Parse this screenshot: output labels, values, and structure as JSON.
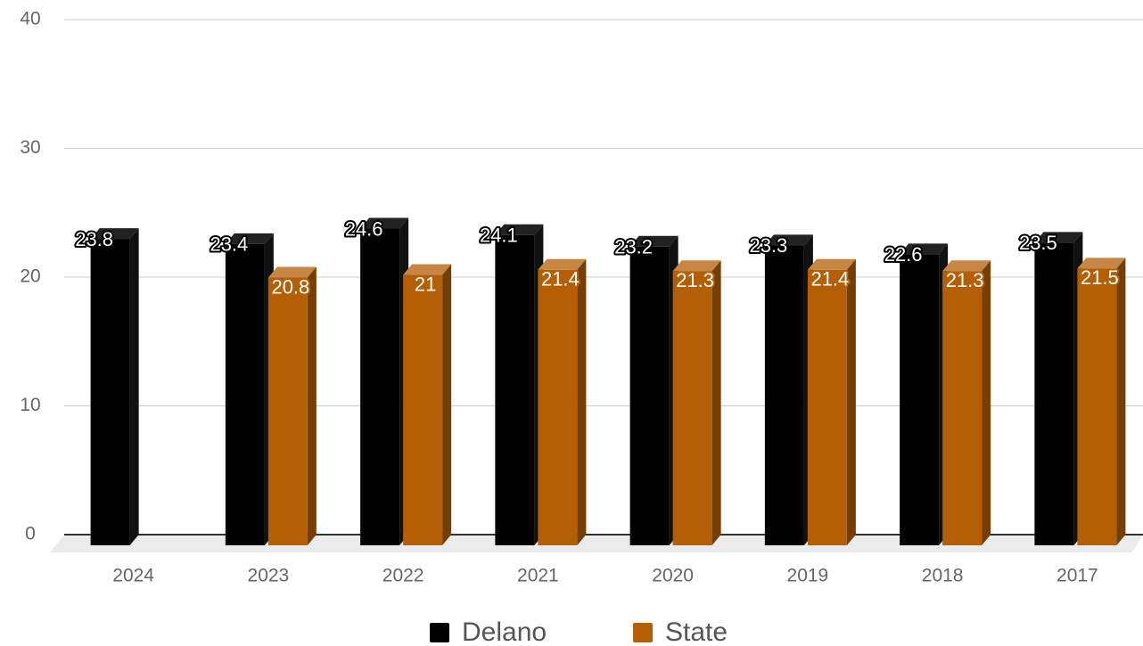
{
  "chart_data": {
    "type": "bar",
    "categories": [
      "2024",
      "2023",
      "2022",
      "2021",
      "2020",
      "2019",
      "2018",
      "2017"
    ],
    "series": [
      {
        "name": "Delano",
        "color": "#000000",
        "values": [
          23.8,
          23.4,
          24.6,
          24.1,
          23.2,
          23.3,
          22.6,
          23.5
        ]
      },
      {
        "name": "State",
        "color": "#b45f06",
        "values": [
          null,
          20.8,
          21,
          21.4,
          21.3,
          21.4,
          21.3,
          21.5
        ]
      }
    ],
    "ylim": [
      0,
      40
    ],
    "yticks": [
      0,
      10,
      20,
      30,
      40
    ],
    "grid": true,
    "legend": "bottom"
  }
}
